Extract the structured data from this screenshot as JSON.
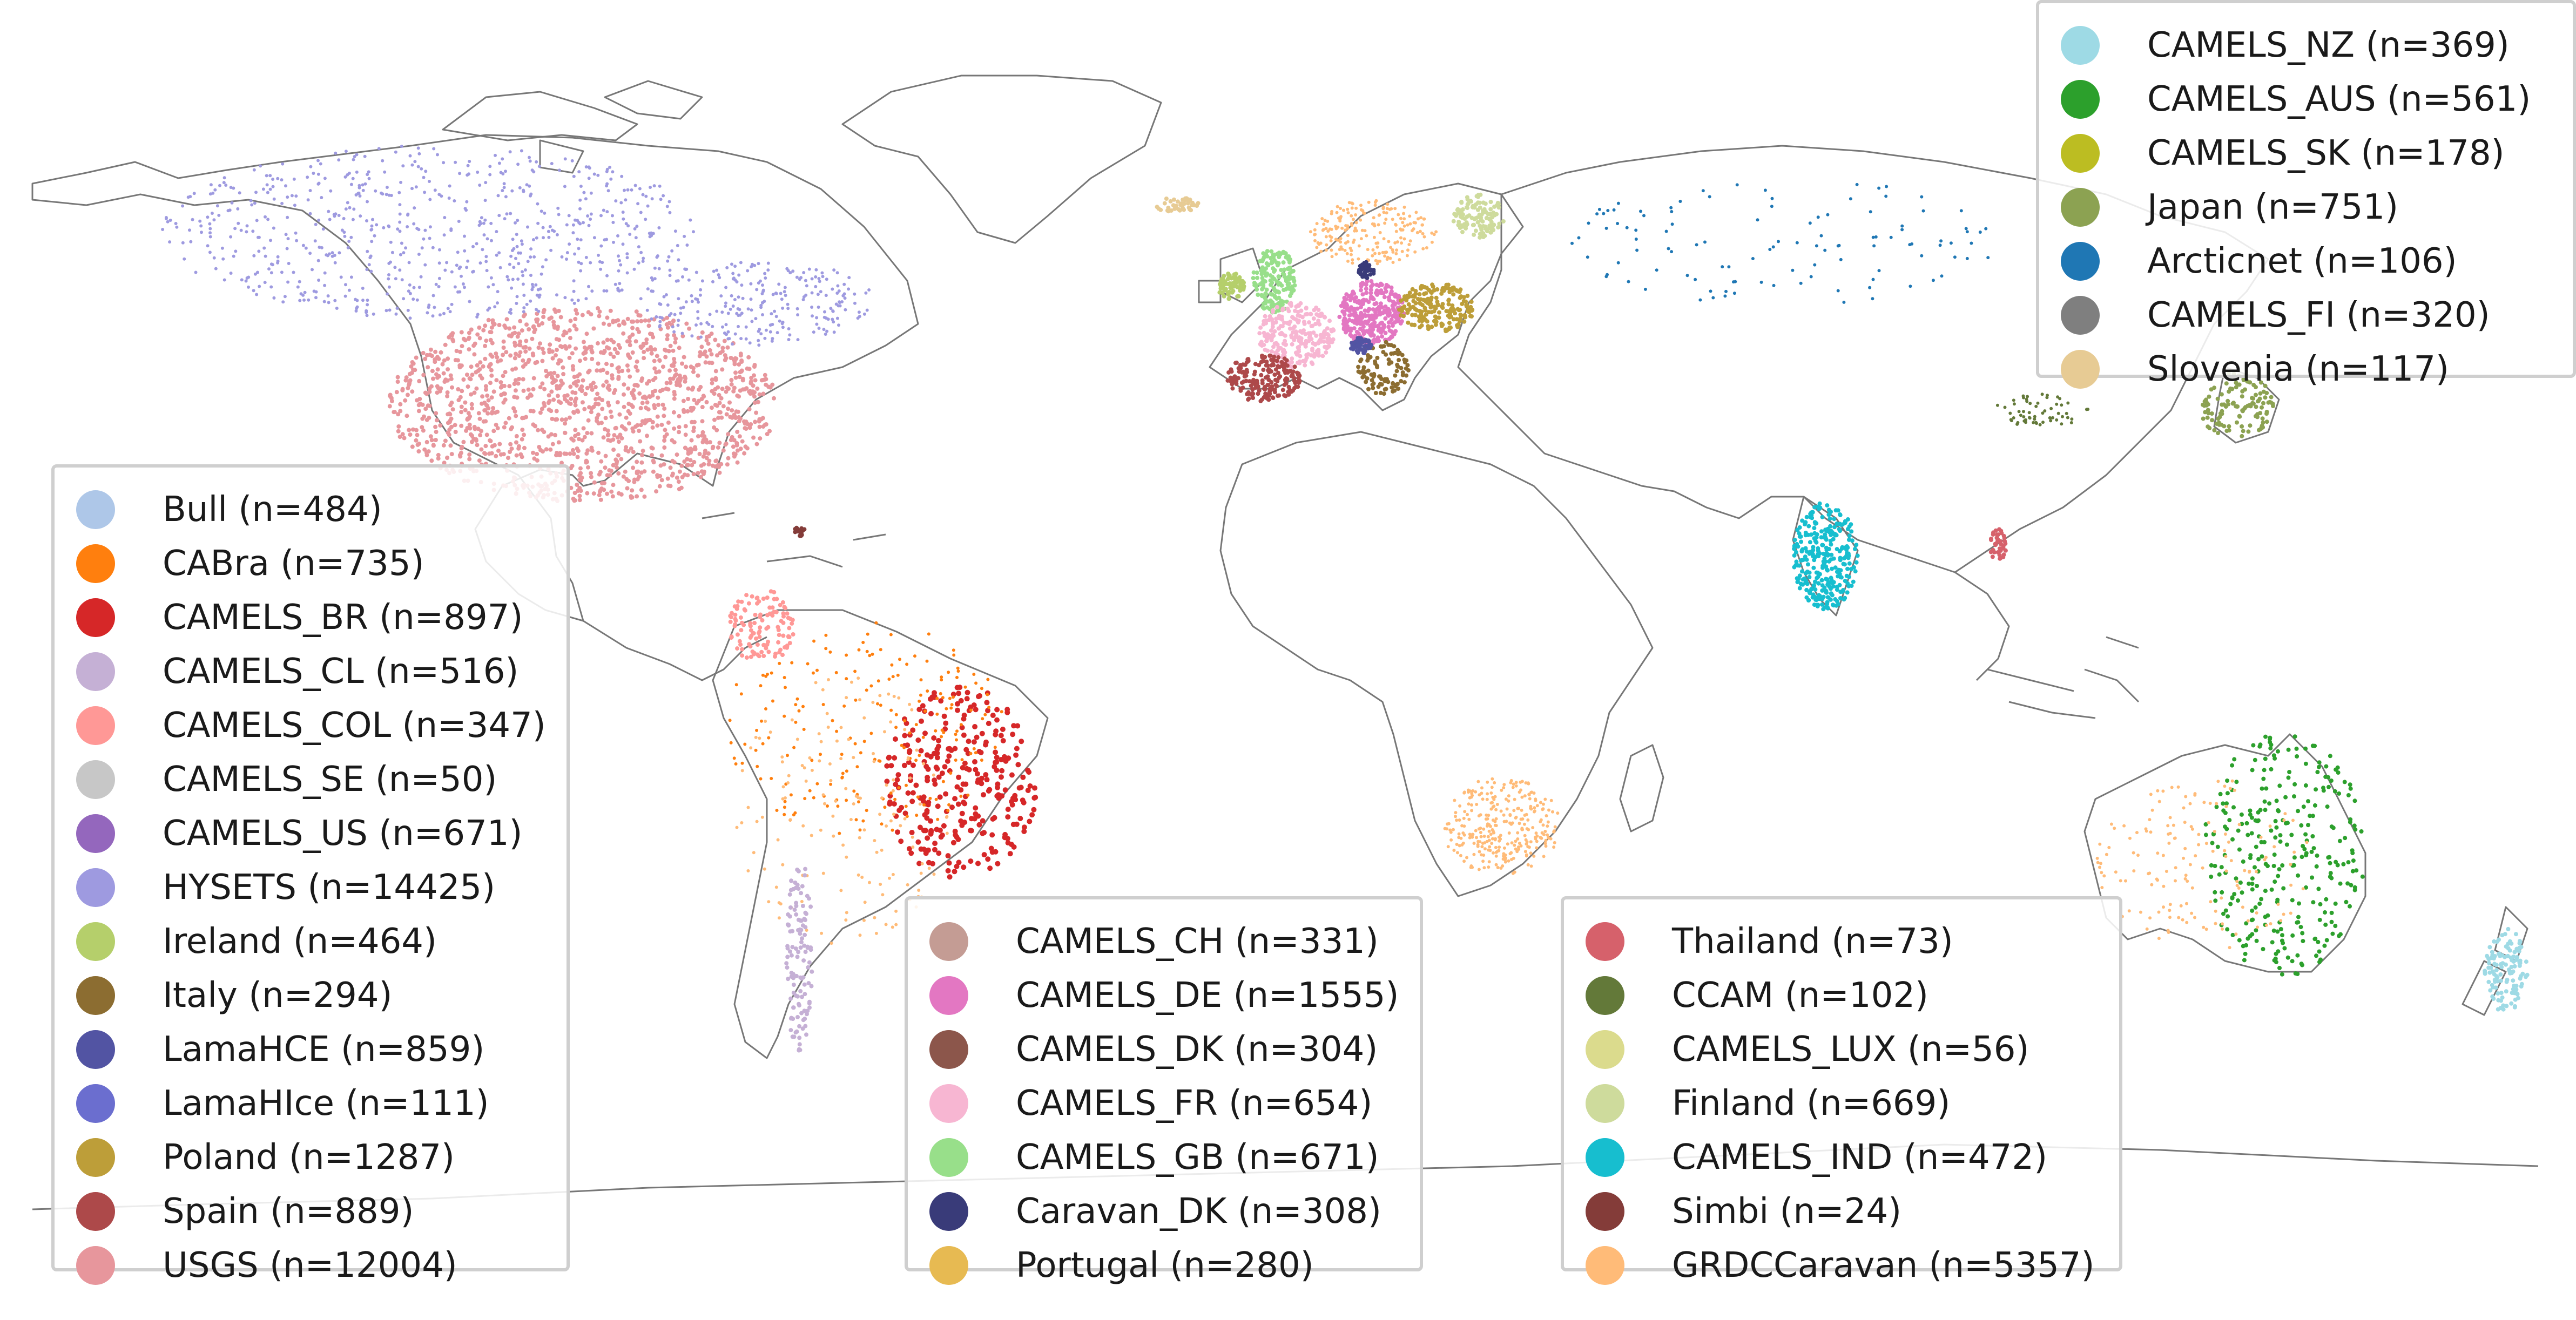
{
  "legends": [
    {
      "id": "legend-left",
      "entries": [
        {
          "label": "Bull (n=484)",
          "color": "#aec7e8"
        },
        {
          "label": "CABra (n=735)",
          "color": "#ff7f0e"
        },
        {
          "label": "CAMELS_BR (n=897)",
          "color": "#d62728"
        },
        {
          "label": "CAMELS_CL (n=516)",
          "color": "#c5b0d5"
        },
        {
          "label": "CAMELS_COL (n=347)",
          "color": "#ff9896"
        },
        {
          "label": "CAMELS_SE (n=50)",
          "color": "#c7c7c7"
        },
        {
          "label": "CAMELS_US (n=671)",
          "color": "#9467bd"
        },
        {
          "label": "HYSETS (n=14425)",
          "color": "#9e9ae0"
        },
        {
          "label": "Ireland (n=464)",
          "color": "#b5cf6b"
        },
        {
          "label": "Italy (n=294)",
          "color": "#8c6d31"
        },
        {
          "label": "LamaHCE (n=859)",
          "color": "#5254a3"
        },
        {
          "label": "LamaHIce (n=111)",
          "color": "#6b6ecf"
        },
        {
          "label": "Poland (n=1287)",
          "color": "#bd9e39"
        },
        {
          "label": "Spain (n=889)",
          "color": "#ad494a"
        },
        {
          "label": "USGS (n=12004)",
          "color": "#e7969c"
        }
      ]
    },
    {
      "id": "legend-middle",
      "entries": [
        {
          "label": "CAMELS_CH (n=331)",
          "color": "#c49c94"
        },
        {
          "label": "CAMELS_DE (n=1555)",
          "color": "#e377c2"
        },
        {
          "label": "CAMELS_DK (n=304)",
          "color": "#8c564b"
        },
        {
          "label": "CAMELS_FR (n=654)",
          "color": "#f7b6d2"
        },
        {
          "label": "CAMELS_GB (n=671)",
          "color": "#98df8a"
        },
        {
          "label": "Caravan_DK (n=308)",
          "color": "#393b79"
        },
        {
          "label": "Portugal (n=280)",
          "color": "#e7ba52"
        }
      ]
    },
    {
      "id": "legend-right-bottom",
      "entries": [
        {
          "label": "Thailand (n=73)",
          "color": "#d6616b"
        },
        {
          "label": "CCAM (n=102)",
          "color": "#637939"
        },
        {
          "label": "CAMELS_LUX (n=56)",
          "color": "#dbdb8d"
        },
        {
          "label": "Finland (n=669)",
          "color": "#cedb9c"
        },
        {
          "label": "CAMELS_IND (n=472)",
          "color": "#17becf"
        },
        {
          "label": "Simbi (n=24)",
          "color": "#843c39"
        },
        {
          "label": "GRDCCaravan (n=5357)",
          "color": "#ffbb78"
        }
      ]
    },
    {
      "id": "legend-top-right",
      "entries": [
        {
          "label": "CAMELS_NZ (n=369)",
          "color": "#9edae5"
        },
        {
          "label": "CAMELS_AUS (n=561)",
          "color": "#2ca02c"
        },
        {
          "label": "CAMELS_SK (n=178)",
          "color": "#bcbd22"
        },
        {
          "label": "Japan (n=751)",
          "color": "#8ca252"
        },
        {
          "label": "Arcticnet (n=106)",
          "color": "#1f77b4"
        },
        {
          "label": "CAMELS_FI (n=320)",
          "color": "#7f7f7f"
        },
        {
          "label": "Slovenia (n=117)",
          "color": "#e7cb94"
        }
      ]
    }
  ],
  "map": {
    "coastline_color": "#777777"
  }
}
